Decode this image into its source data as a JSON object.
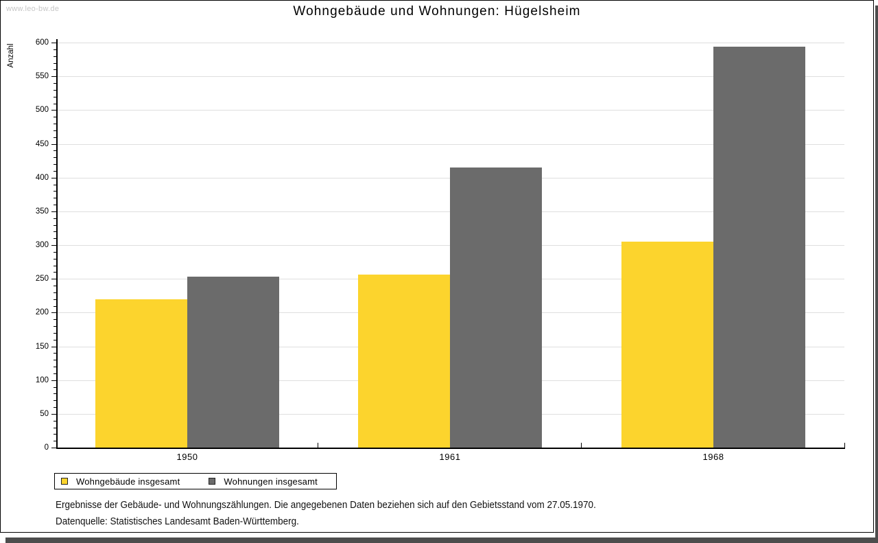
{
  "watermark": "www.leo-bw.de",
  "chart_data": {
    "type": "bar",
    "title": "Wohngebäude und Wohnungen: Hügelsheim",
    "xlabel": "",
    "ylabel": "Anzahl",
    "categories": [
      "1950",
      "1961",
      "1968"
    ],
    "series": [
      {
        "name": "Wohngebäude insgesamt",
        "color": "#fcd42d",
        "values": [
          220,
          256,
          305
        ]
      },
      {
        "name": "Wohnungen insgesamt",
        "color": "#6b6b6b",
        "values": [
          253,
          415,
          594
        ]
      }
    ],
    "ylim": [
      0,
      600
    ],
    "ytick_step": 50,
    "minor_tick_step": 10,
    "grid": true,
    "legend_position": "bottom-left"
  },
  "footer": {
    "line1": "Ergebnisse der Gebäude- und Wohnungszählungen. Die angegebenen Daten beziehen sich auf den Gebietsstand vom 27.05.1970.",
    "line2": "Datenquelle: Statistisches Landesamt Baden-Württemberg."
  },
  "colors": {
    "series1": "#fcd42d",
    "series2": "#6b6b6b",
    "gridline": "#dedede",
    "axis": "#000000",
    "watermark": "#c6c6c6",
    "shadow": "#4d4d4d"
  }
}
